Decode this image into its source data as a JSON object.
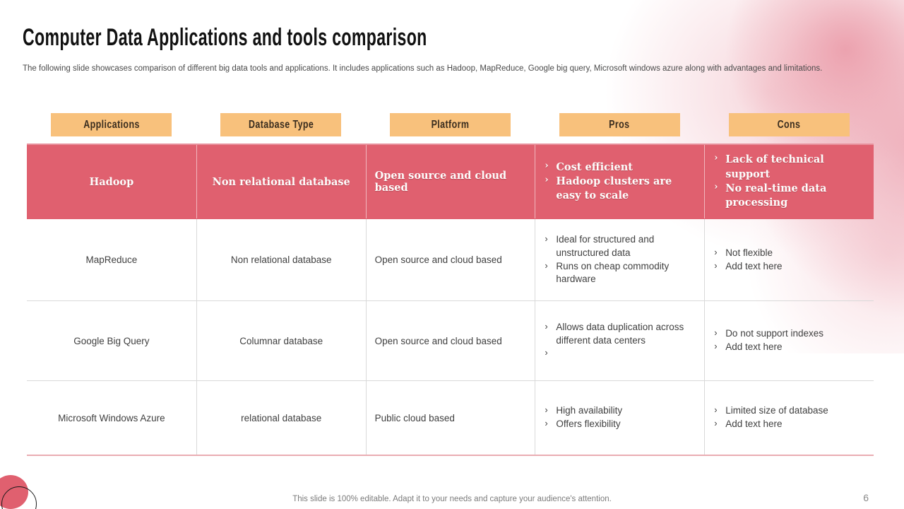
{
  "slide": {
    "title": "Computer Data Applications and tools comparison",
    "subtitle": "The following slide showcases comparison of different big data tools and applications. It includes applications such as Hadoop, MapReduce, Google big query, Microsoft windows azure along with advantages and limitations.",
    "footer": "This slide is 100% editable. Adapt it to your needs and capture your audience's attention.",
    "page_number": "6"
  },
  "colors": {
    "accent_red": "#e0606f",
    "header_orange": "#f8c17c",
    "body_text": "#404040",
    "border_gray": "#d9d9d9"
  },
  "table": {
    "columns": [
      "Applications",
      "Database Type",
      "Platform",
      "Pros",
      "Cons"
    ],
    "rows": [
      {
        "application": "Hadoop",
        "database_type": "Non relational database",
        "platform": "Open source and cloud based",
        "pros": [
          "Cost efficient",
          "Hadoop clusters are easy to scale"
        ],
        "cons": [
          "Lack of technical support",
          "No real-time data processing"
        ]
      },
      {
        "application": "MapReduce",
        "database_type": "Non relational database",
        "platform": "Open source and cloud based",
        "pros": [
          "Ideal for structured and unstructured data",
          "Runs on cheap commodity hardware"
        ],
        "cons": [
          "Not flexible",
          "Add text here"
        ]
      },
      {
        "application": "Google Big Query",
        "database_type": "Columnar database",
        "platform": "Open source and cloud based",
        "pros": [
          "Allows data duplication across different data centers",
          ""
        ],
        "cons": [
          "Do not support indexes",
          "Add text here"
        ]
      },
      {
        "application": "Microsoft Windows Azure",
        "database_type": "relational database",
        "platform": "Public cloud based",
        "pros": [
          "High availability",
          "Offers flexibility"
        ],
        "cons": [
          "Limited size of database",
          "Add text here"
        ]
      }
    ]
  }
}
